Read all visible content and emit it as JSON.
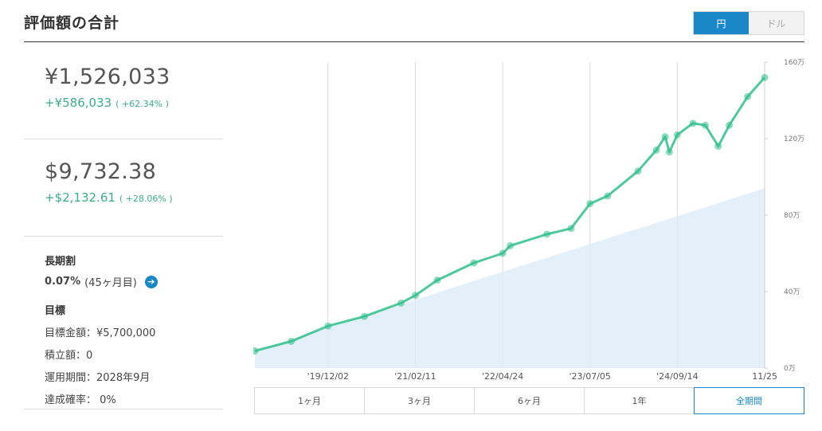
{
  "header": {
    "title": "評価額の合計",
    "currency_options": [
      {
        "label": "円",
        "active": true
      },
      {
        "label": "ドル",
        "active": false
      }
    ]
  },
  "yen_card": {
    "amount": "¥1,526,033",
    "gain": "+¥586,033",
    "gain_pct": "( +62.34% )"
  },
  "usd_card": {
    "amount": "$9,732.38",
    "gain": "+$2,132.61",
    "gain_pct": "( +28.06% )"
  },
  "long_term": {
    "heading": "長期割",
    "rate": "0.07%",
    "months": "(45ヶ月目)",
    "arrow": "➔"
  },
  "goal": {
    "heading": "目標",
    "target_amount": "目標金額：¥5,700,000",
    "contribution": "積立額：0",
    "period": "運用期間：2028年9月",
    "probability": "達成確率： 0%"
  },
  "range_buttons": [
    {
      "label": "1ヶ月",
      "active": false
    },
    {
      "label": "3ヶ月",
      "active": false
    },
    {
      "label": "6ヶ月",
      "active": false
    },
    {
      "label": "1年",
      "active": false
    },
    {
      "label": "全期間",
      "active": true
    }
  ],
  "colors": {
    "accent": "#1a87c9",
    "gain": "#3cae8a",
    "line": "#2fbf8a",
    "principal_fill": "#dcebf7"
  },
  "chart_data": {
    "type": "area",
    "x_tick_labels": [
      "'19/12/02",
      "'21/02/11",
      "'22/04/24",
      "'23/07/05",
      "'24/09/14",
      "11/25"
    ],
    "y_tick_labels": [
      "0万",
      "40万",
      "80万",
      "120万",
      "160万"
    ],
    "ylim": [
      0,
      160
    ],
    "y_unit": "万",
    "series": [
      {
        "name": "",
        "role": "valuation",
        "x": [
          "2018-12-01",
          "2019-06-01",
          "2019-12-02",
          "2020-06-01",
          "2020-12-01",
          "2021-02-11",
          "2021-06-01",
          "2021-12-01",
          "2022-04-24",
          "2022-06-01",
          "2022-12-01",
          "2023-04-01",
          "2023-07-05",
          "2023-10-01",
          "2024-03-01",
          "2024-06-01",
          "2024-07-15",
          "2024-08-05",
          "2024-09-14",
          "2024-12-01",
          "2025-02-01",
          "2025-04-07",
          "2025-06-01",
          "2025-09-01",
          "2025-11-25"
        ],
        "values": [
          9,
          14,
          22,
          27,
          34,
          38,
          46,
          55,
          60,
          64,
          70,
          73,
          86,
          90,
          103,
          114,
          121,
          113,
          122,
          128,
          127,
          116,
          127,
          142,
          152
        ]
      },
      {
        "name": "",
        "role": "principal",
        "x": [
          "2018-12-01",
          "2025-11-25"
        ],
        "values": [
          9,
          94
        ]
      }
    ]
  }
}
